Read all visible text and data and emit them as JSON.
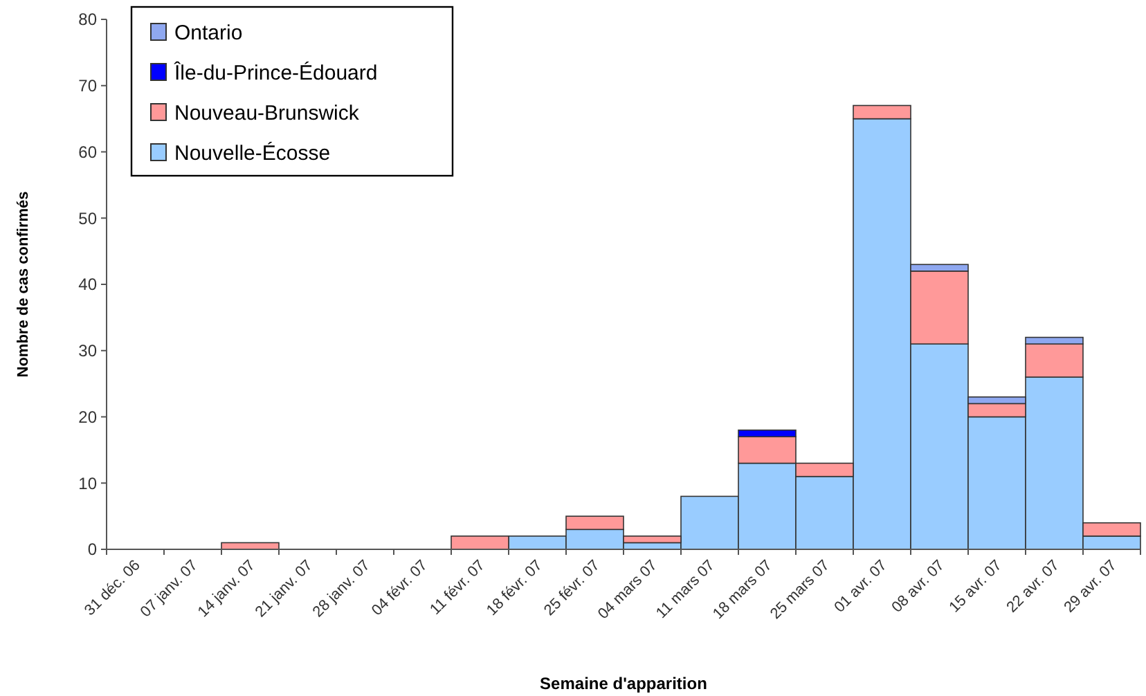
{
  "chart_data": {
    "type": "bar",
    "stacked": true,
    "xlabel": "Semaine d'apparition",
    "ylabel": "Nombre de cas confirmés",
    "categories": [
      "31 déc. 06",
      "07 janv. 07",
      "14 janv. 07",
      "21 janv. 07",
      "28 janv. 07",
      "04 févr. 07",
      "11 févr. 07",
      "18 févr. 07",
      "25 févr. 07",
      "04 mars 07",
      "11 mars 07",
      "18 mars 07",
      "25 mars 07",
      "01 avr. 07",
      "08 avr. 07",
      "15 avr. 07",
      "22 avr. 07",
      "29 avr. 07"
    ],
    "series": [
      {
        "name": "Nouvelle-Écosse",
        "color": "#99ccff",
        "values": [
          0,
          0,
          0,
          0,
          0,
          0,
          0,
          2,
          3,
          1,
          8,
          13,
          11,
          65,
          31,
          20,
          26,
          2
        ]
      },
      {
        "name": "Nouveau-Brunswick",
        "color": "#ff9999",
        "values": [
          0,
          0,
          1,
          0,
          0,
          0,
          2,
          0,
          2,
          1,
          0,
          4,
          2,
          2,
          11,
          2,
          5,
          2
        ]
      },
      {
        "name": "Île-du-Prince-Édouard",
        "color": "#0000ff",
        "values": [
          0,
          0,
          0,
          0,
          0,
          0,
          0,
          0,
          0,
          0,
          0,
          1,
          0,
          0,
          0,
          0,
          0,
          0
        ]
      },
      {
        "name": "Ontario",
        "color": "#8fa8f0",
        "values": [
          0,
          0,
          0,
          0,
          0,
          0,
          0,
          0,
          0,
          0,
          0,
          0,
          0,
          0,
          1,
          1,
          1,
          0
        ]
      }
    ],
    "ylim": [
      0,
      80
    ],
    "yticks": [
      0,
      10,
      20,
      30,
      40,
      50,
      60,
      70,
      80
    ],
    "legend": "top left"
  }
}
